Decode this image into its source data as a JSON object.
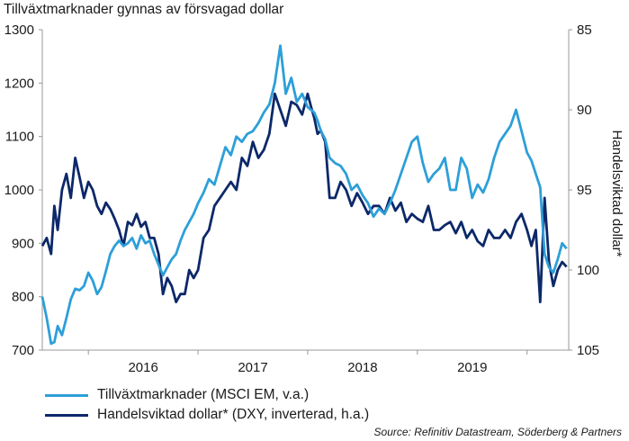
{
  "colors": {
    "em": "#2d9fd8",
    "dollar": "#0c2869",
    "axis": "#999999",
    "text": "#1a1a1a"
  },
  "chart_data": {
    "type": "line",
    "title": "Tillväxtmarknader gynnas av försvagad dollar",
    "right_ylabel": "Handelsviktad dollar*",
    "source": "Source: Refinitiv Datastream, Söderberg & Partners",
    "x_tick_labels": [
      "2016",
      "2017",
      "2018",
      "2019"
    ],
    "x_range": [
      2015.58,
      2020.38
    ],
    "left_axis": {
      "ylim": [
        700,
        1300
      ],
      "ticks": [
        "700",
        "800",
        "900",
        "1000",
        "1100",
        "1200",
        "1300"
      ]
    },
    "right_axis": {
      "ylim": [
        85,
        105
      ],
      "inverted": true,
      "ticks": [
        "85",
        "90",
        "95",
        "100",
        "105"
      ]
    },
    "grid": false,
    "legend_position": "bottom-left",
    "series": [
      {
        "name": "Tillväxtmarknader (MSCI EM, v.a.)",
        "axis": "left",
        "x": [
          2015.58,
          2015.62,
          2015.66,
          2015.69,
          2015.72,
          2015.76,
          2015.8,
          2015.84,
          2015.88,
          2015.92,
          2015.96,
          2016.0,
          2016.04,
          2016.08,
          2016.12,
          2016.16,
          2016.2,
          2016.24,
          2016.28,
          2016.32,
          2016.36,
          2016.4,
          2016.44,
          2016.48,
          2016.52,
          2016.56,
          2016.6,
          2016.64,
          2016.68,
          2016.72,
          2016.76,
          2016.8,
          2016.84,
          2016.88,
          2016.92,
          2016.96,
          2017.0,
          2017.05,
          2017.1,
          2017.15,
          2017.2,
          2017.25,
          2017.3,
          2017.35,
          2017.4,
          2017.45,
          2017.5,
          2017.55,
          2017.6,
          2017.65,
          2017.7,
          2017.75,
          2017.8,
          2017.85,
          2017.9,
          2017.95,
          2018.0,
          2018.03,
          2018.06,
          2018.09,
          2018.12,
          2018.16,
          2018.2,
          2018.25,
          2018.3,
          2018.35,
          2018.4,
          2018.45,
          2018.5,
          2018.55,
          2018.6,
          2018.65,
          2018.7,
          2018.75,
          2018.8,
          2018.85,
          2018.9,
          2018.95,
          2019.0,
          2019.05,
          2019.1,
          2019.15,
          2019.2,
          2019.25,
          2019.3,
          2019.35,
          2019.4,
          2019.45,
          2019.5,
          2019.55,
          2019.6,
          2019.65,
          2019.7,
          2019.75,
          2019.8,
          2019.85,
          2019.9,
          2019.95,
          2020.0,
          2020.04,
          2020.08,
          2020.12,
          2020.16,
          2020.2,
          2020.24,
          2020.28,
          2020.32,
          2020.36
        ],
        "y": [
          800,
          760,
          712,
          715,
          745,
          728,
          760,
          795,
          815,
          812,
          820,
          845,
          830,
          805,
          818,
          848,
          880,
          895,
          905,
          895,
          900,
          910,
          890,
          915,
          900,
          905,
          880,
          860,
          840,
          855,
          870,
          880,
          905,
          925,
          940,
          955,
          975,
          995,
          1020,
          1010,
          1045,
          1080,
          1065,
          1100,
          1090,
          1105,
          1110,
          1125,
          1145,
          1160,
          1200,
          1270,
          1180,
          1210,
          1165,
          1180,
          1155,
          1150,
          1145,
          1130,
          1110,
          1095,
          1060,
          1050,
          1045,
          1030,
          1000,
          1010,
          990,
          975,
          950,
          965,
          955,
          975,
          1000,
          1030,
          1060,
          1090,
          1100,
          1050,
          1015,
          1030,
          1040,
          1060,
          1000,
          1000,
          1060,
          1040,
          985,
          1010,
          995,
          1020,
          1060,
          1090,
          1105,
          1120,
          1150,
          1110,
          1070,
          1055,
          1030,
          1005,
          880,
          855,
          845,
          870,
          900,
          890
        ],
        "color_key": "em"
      },
      {
        "name": "Handelsviktad dollar* (DXY, inverterad, h.a.)",
        "axis": "right",
        "x": [
          2015.58,
          2015.62,
          2015.66,
          2015.69,
          2015.72,
          2015.76,
          2015.8,
          2015.84,
          2015.88,
          2015.92,
          2015.96,
          2016.0,
          2016.04,
          2016.08,
          2016.12,
          2016.16,
          2016.2,
          2016.24,
          2016.28,
          2016.32,
          2016.36,
          2016.4,
          2016.44,
          2016.48,
          2016.52,
          2016.56,
          2016.6,
          2016.64,
          2016.68,
          2016.72,
          2016.76,
          2016.8,
          2016.84,
          2016.88,
          2016.92,
          2016.96,
          2017.0,
          2017.05,
          2017.1,
          2017.15,
          2017.2,
          2017.25,
          2017.3,
          2017.35,
          2017.4,
          2017.45,
          2017.5,
          2017.55,
          2017.6,
          2017.65,
          2017.7,
          2017.75,
          2017.8,
          2017.85,
          2017.9,
          2017.95,
          2018.0,
          2018.03,
          2018.06,
          2018.09,
          2018.12,
          2018.16,
          2018.2,
          2018.25,
          2018.3,
          2018.35,
          2018.4,
          2018.45,
          2018.5,
          2018.55,
          2018.6,
          2018.65,
          2018.7,
          2018.75,
          2018.8,
          2018.85,
          2018.9,
          2018.95,
          2019.0,
          2019.05,
          2019.1,
          2019.15,
          2019.2,
          2019.25,
          2019.3,
          2019.35,
          2019.4,
          2019.45,
          2019.5,
          2019.55,
          2019.6,
          2019.65,
          2019.7,
          2019.75,
          2019.8,
          2019.85,
          2019.9,
          2019.95,
          2020.0,
          2020.04,
          2020.08,
          2020.12,
          2020.16,
          2020.2,
          2020.24,
          2020.28,
          2020.32,
          2020.36
        ],
        "y": [
          98.5,
          98.0,
          99.0,
          96.0,
          97.5,
          95.0,
          94.0,
          95.5,
          93.0,
          94.2,
          95.5,
          94.5,
          95.0,
          96.0,
          96.5,
          95.8,
          96.2,
          96.8,
          97.5,
          98.5,
          97.0,
          97.2,
          96.5,
          97.3,
          97.0,
          98.0,
          98.0,
          99.0,
          101.5,
          100.5,
          101.0,
          102.0,
          101.5,
          101.5,
          100.0,
          100.5,
          100.0,
          98.0,
          97.5,
          96.0,
          95.5,
          95.0,
          94.5,
          95.0,
          93.0,
          93.5,
          92.0,
          93.0,
          92.5,
          91.5,
          89.0,
          90.0,
          91.0,
          89.5,
          89.7,
          90.3,
          89.0,
          89.8,
          90.5,
          91.5,
          91.3,
          92.0,
          95.5,
          95.5,
          94.5,
          95.0,
          96.0,
          95.2,
          95.8,
          96.5,
          96.0,
          96.0,
          96.5,
          95.5,
          96.3,
          95.8,
          97.0,
          96.5,
          96.8,
          97.0,
          96.0,
          97.5,
          97.5,
          97.2,
          97.0,
          97.7,
          97.0,
          98.0,
          97.5,
          98.2,
          98.5,
          97.5,
          98.0,
          98.0,
          97.5,
          98.0,
          97.0,
          96.5,
          97.5,
          98.5,
          97.5,
          102.0,
          95.5,
          99.5,
          101.0,
          100.0,
          99.5,
          99.8
        ],
        "color_key": "dollar"
      }
    ]
  }
}
